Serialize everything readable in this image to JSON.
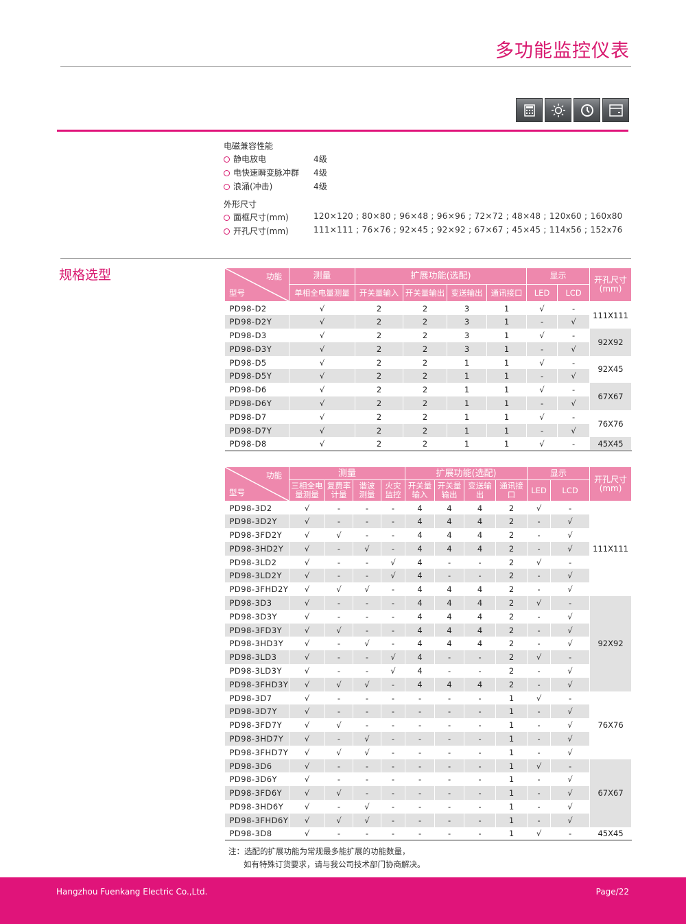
{
  "title": "多功能监控仪表",
  "icons": [
    "calculator-icon",
    "sun-icon",
    "clock-icon",
    "card-icon"
  ],
  "colors": {
    "accent": "#e0147a",
    "header": "#ee88ad",
    "stripe": "#e1e1e1"
  },
  "emc": {
    "heading": "电磁兼容性能",
    "items": [
      {
        "label": "静电放电",
        "value": "4级"
      },
      {
        "label": "电快速瞬变脉冲群",
        "value": "4级"
      },
      {
        "label": "浪涌(冲击)",
        "value": "4级"
      }
    ]
  },
  "dims": {
    "heading": "外形尺寸",
    "items": [
      {
        "label": "面框尺寸(mm)",
        "value": "120×120 ; 80×80 ; 96×48 ; 96×96 ; 72×72 ; 48×48 ; 120x60 ; 160x80"
      },
      {
        "label": "开孔尺寸(mm)",
        "value": "111×111 ; 76×76 ; 92×45 ; 92×92 ; 67×67 ; 45×45 ; 114x56 ; 152x76"
      }
    ]
  },
  "section_title": "规格选型",
  "table1": {
    "corner_func": "功能",
    "corner_model": "型号",
    "groups": [
      "测量",
      "扩展功能(选配)",
      "显示",
      "开孔尺寸\n(mm)"
    ],
    "cols": [
      "单相全电量测量",
      "开关量输入",
      "开关量输出",
      "变送输出",
      "通讯接口",
      "LED",
      "LCD"
    ],
    "rows": [
      [
        "PD98-D2",
        "√",
        "2",
        "2",
        "3",
        "1",
        "√",
        "-"
      ],
      [
        "PD98-D2Y",
        "√",
        "2",
        "2",
        "3",
        "1",
        "-",
        "√"
      ],
      [
        "PD98-D3",
        "√",
        "2",
        "2",
        "3",
        "1",
        "√",
        "-"
      ],
      [
        "PD98-D3Y",
        "√",
        "2",
        "2",
        "3",
        "1",
        "-",
        "√"
      ],
      [
        "PD98-D5",
        "√",
        "2",
        "2",
        "1",
        "1",
        "√",
        "-"
      ],
      [
        "PD98-D5Y",
        "√",
        "2",
        "2",
        "1",
        "1",
        "-",
        "√"
      ],
      [
        "PD98-D6",
        "√",
        "2",
        "2",
        "1",
        "1",
        "√",
        "-"
      ],
      [
        "PD98-D6Y",
        "√",
        "2",
        "2",
        "1",
        "1",
        "-",
        "√"
      ],
      [
        "PD98-D7",
        "√",
        "2",
        "2",
        "1",
        "1",
        "√",
        "-"
      ],
      [
        "PD98-D7Y",
        "√",
        "2",
        "2",
        "1",
        "1",
        "-",
        "√"
      ],
      [
        "PD98-D8",
        "√",
        "2",
        "2",
        "1",
        "1",
        "√",
        "-"
      ]
    ],
    "sizes": [
      {
        "label": "111X111",
        "rows": 2
      },
      {
        "label": "92X92",
        "rows": 2
      },
      {
        "label": "92X45",
        "rows": 2
      },
      {
        "label": "67X67",
        "rows": 2
      },
      {
        "label": "76X76",
        "rows": 2
      },
      {
        "label": "45X45",
        "rows": 1
      }
    ]
  },
  "table2": {
    "corner_func": "功能",
    "corner_model": "型号",
    "groups": [
      "测量",
      "扩展功能(选配)",
      "显示",
      "开孔尺寸\n(mm)"
    ],
    "cols": [
      "三相全电\n量测量",
      "复费率\n计量",
      "谐波\n测量",
      "火灾\n监控",
      "开关量\n输入",
      "开关量\n输出",
      "变送输出",
      "通讯接口",
      "LED",
      "LCD"
    ],
    "rows": [
      [
        "PD98-3D2",
        "√",
        "-",
        "-",
        "-",
        "4",
        "4",
        "4",
        "2",
        "√",
        "-"
      ],
      [
        "PD98-3D2Y",
        "√",
        "-",
        "-",
        "-",
        "4",
        "4",
        "4",
        "2",
        "-",
        "√"
      ],
      [
        "PD98-3FD2Y",
        "√",
        "√",
        "-",
        "-",
        "4",
        "4",
        "4",
        "2",
        "-",
        "√"
      ],
      [
        "PD98-3HD2Y",
        "√",
        "-",
        "√",
        "-",
        "4",
        "4",
        "4",
        "2",
        "-",
        "√"
      ],
      [
        "PD98-3LD2",
        "√",
        "-",
        "-",
        "√",
        "4",
        "-",
        "-",
        "2",
        "√",
        "-"
      ],
      [
        "PD98-3LD2Y",
        "√",
        "-",
        "-",
        "√",
        "4",
        "-",
        "-",
        "2",
        "-",
        "√"
      ],
      [
        "PD98-3FHD2Y",
        "√",
        "√",
        "√",
        "-",
        "4",
        "4",
        "4",
        "2",
        "-",
        "√"
      ],
      [
        "PD98-3D3",
        "√",
        "-",
        "-",
        "-",
        "4",
        "4",
        "4",
        "2",
        "√",
        "-"
      ],
      [
        "PD98-3D3Y",
        "√",
        "-",
        "-",
        "-",
        "4",
        "4",
        "4",
        "2",
        "-",
        "√"
      ],
      [
        "PD98-3FD3Y",
        "√",
        "√",
        "-",
        "-",
        "4",
        "4",
        "4",
        "2",
        "-",
        "√"
      ],
      [
        "PD98-3HD3Y",
        "√",
        "-",
        "√",
        "-",
        "4",
        "4",
        "4",
        "2",
        "-",
        "√"
      ],
      [
        "PD98-3LD3",
        "√",
        "-",
        "-",
        "√",
        "4",
        "-",
        "-",
        "2",
        "√",
        "-"
      ],
      [
        "PD98-3LD3Y",
        "√",
        "-",
        "-",
        "√",
        "4",
        "-",
        "-",
        "2",
        "-",
        "√"
      ],
      [
        "PD98-3FHD3Y",
        "√",
        "√",
        "√",
        "-",
        "4",
        "4",
        "4",
        "2",
        "-",
        "√"
      ],
      [
        "PD98-3D7",
        "√",
        "-",
        "-",
        "-",
        "-",
        "-",
        "-",
        "1",
        "√",
        "-"
      ],
      [
        "PD98-3D7Y",
        "√",
        "-",
        "-",
        "-",
        "-",
        "-",
        "-",
        "1",
        "-",
        "√"
      ],
      [
        "PD98-3FD7Y",
        "√",
        "√",
        "-",
        "-",
        "-",
        "-",
        "-",
        "1",
        "-",
        "√"
      ],
      [
        "PD98-3HD7Y",
        "√",
        "-",
        "√",
        "-",
        "-",
        "-",
        "-",
        "1",
        "-",
        "√"
      ],
      [
        "PD98-3FHD7Y",
        "√",
        "√",
        "√",
        "-",
        "-",
        "-",
        "-",
        "1",
        "-",
        "√"
      ],
      [
        "PD98-3D6",
        "√",
        "-",
        "-",
        "-",
        "-",
        "-",
        "-",
        "1",
        "√",
        "-"
      ],
      [
        "PD98-3D6Y",
        "√",
        "-",
        "-",
        "-",
        "-",
        "-",
        "-",
        "1",
        "-",
        "√"
      ],
      [
        "PD98-3FD6Y",
        "√",
        "√",
        "-",
        "-",
        "-",
        "-",
        "-",
        "1",
        "-",
        "√"
      ],
      [
        "PD98-3HD6Y",
        "√",
        "-",
        "√",
        "-",
        "-",
        "-",
        "-",
        "1",
        "-",
        "√"
      ],
      [
        "PD98-3FHD6Y",
        "√",
        "√",
        "√",
        "-",
        "-",
        "-",
        "-",
        "1",
        "-",
        "√"
      ],
      [
        "PD98-3D8",
        "√",
        "-",
        "-",
        "-",
        "-",
        "-",
        "-",
        "1",
        "√",
        "-"
      ]
    ],
    "sizes": [
      {
        "label": "111X111",
        "rows": 7
      },
      {
        "label": "92X92",
        "rows": 7
      },
      {
        "label": "76X76",
        "rows": 5
      },
      {
        "label": "67X67",
        "rows": 5
      },
      {
        "label": "45X45",
        "rows": 1
      }
    ]
  },
  "note": {
    "line1": "注：选配的扩展功能为常规最多能扩展的功能数量，",
    "line2": "如有特殊订货要求，请与我公司技术部门协商解决。"
  },
  "footer": {
    "company": "Hangzhou Fuenkang Electric Co.,Ltd.",
    "page": "Page/22"
  }
}
